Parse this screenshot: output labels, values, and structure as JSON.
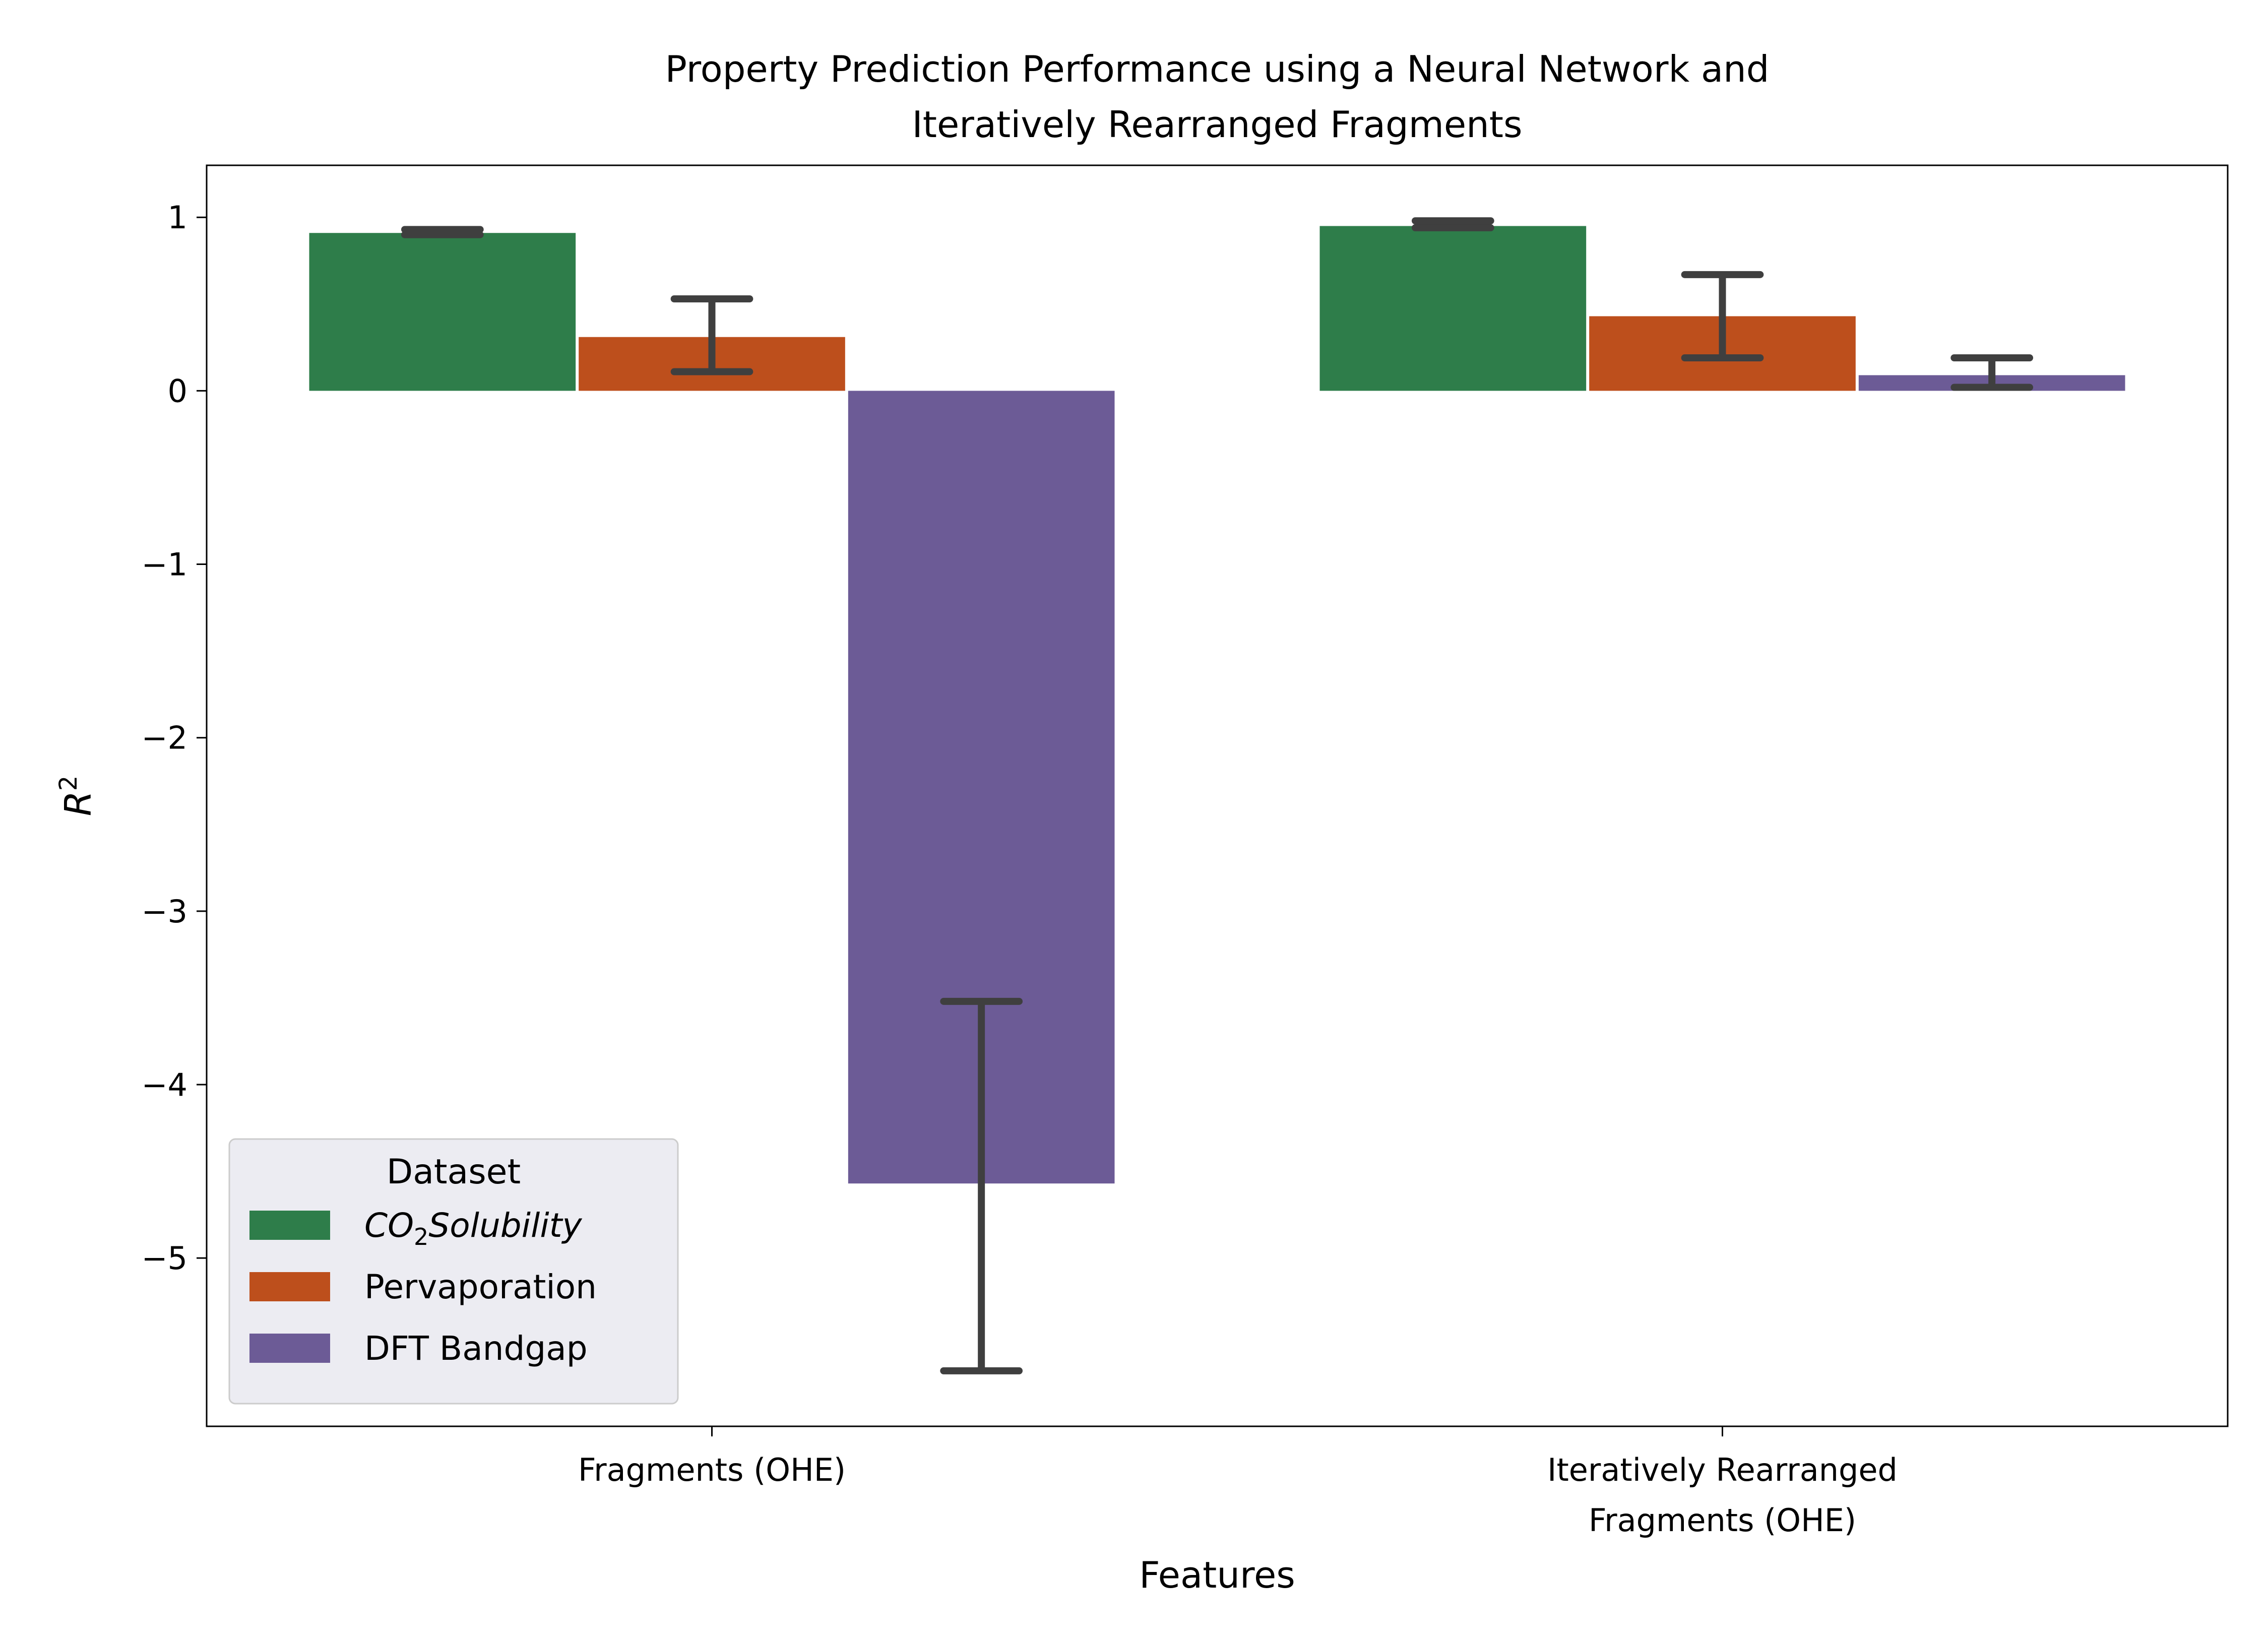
{
  "chart_data": {
    "type": "bar",
    "title": [
      "Property Prediction Performance using a Neural Network and",
      "Iteratively Rearranged Fragments"
    ],
    "xlabel": "Features",
    "ylabel_base": "R",
    "ylabel_sup": "2",
    "categories": [
      [
        "Fragments (OHE)"
      ],
      [
        "Iteratively Rearranged",
        "Fragments (OHE)"
      ]
    ],
    "ylim": [
      -5.97,
      1.3
    ],
    "yticks": [
      1,
      0,
      -1,
      -2,
      -3,
      -4,
      -5
    ],
    "ytick_labels": [
      "1",
      "0",
      "−1",
      "−2",
      "−3",
      "−4",
      "−5"
    ],
    "grid": false,
    "legend": {
      "title": "Dataset",
      "placement": "lower-left",
      "entries": [
        {
          "base": "CO",
          "sub": "2",
          "rest": "Solubility",
          "italic": true
        },
        {
          "base": "Pervaporation",
          "sub": "",
          "rest": "",
          "italic": false
        },
        {
          "base": "DFT Bandgap",
          "sub": "",
          "rest": "",
          "italic": false
        }
      ]
    },
    "series": [
      {
        "name": "CO2Solubility",
        "color": "#2e7d4a",
        "values": [
          0.91,
          0.95
        ],
        "err_low": [
          0.9,
          0.94
        ],
        "err_high": [
          0.93,
          0.98
        ]
      },
      {
        "name": "Pervaporation",
        "color": "#bd4f1c",
        "values": [
          0.31,
          0.43
        ],
        "err_low": [
          0.11,
          0.19
        ],
        "err_high": [
          0.53,
          0.67
        ]
      },
      {
        "name": "DFT Bandgap",
        "color": "#6c5b96",
        "values": [
          -4.57,
          0.09
        ],
        "err_low": [
          -5.65,
          0.02
        ],
        "err_high": [
          -3.52,
          0.19
        ]
      }
    ],
    "errorbar_color": "#3f3f3f"
  }
}
